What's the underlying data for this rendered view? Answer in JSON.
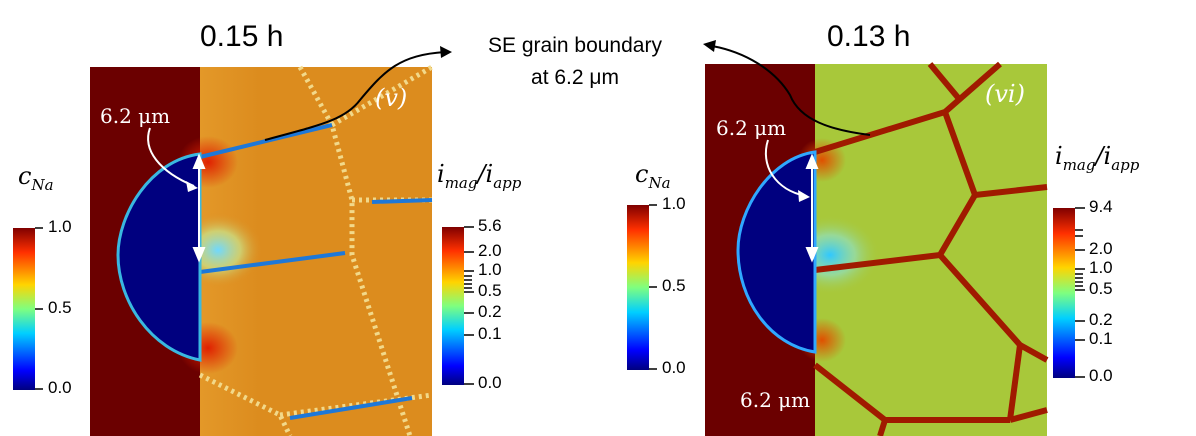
{
  "left_panel": {
    "time_label": "0.15 h",
    "panel_tag": "(v)",
    "dim_label": "6.2 μm",
    "cna_colorbar": {
      "title": "c",
      "title_sub": "Na",
      "ticks": [
        "1.0",
        "0.5",
        "0.0"
      ]
    },
    "imag_colorbar": {
      "title": "i",
      "title_sub1": "mag",
      "title_sep": "/i",
      "title_sub2": "app",
      "ticks": [
        "5.6",
        "2.0",
        "1.0",
        "0.5",
        "0.2",
        "0.1",
        "0.0"
      ]
    }
  },
  "right_panel": {
    "time_label": "0.13 h",
    "panel_tag": "(vi)",
    "dim_label_top": "6.2 μm",
    "dim_label_bottom": "6.2 μm",
    "cna_colorbar": {
      "title": "c",
      "title_sub": "Na",
      "ticks": [
        "1.0",
        "0.5",
        "0.0"
      ]
    },
    "imag_colorbar": {
      "title": "i",
      "title_sub1": "mag",
      "title_sep": "/i",
      "title_sub2": "app",
      "ticks": [
        "9.4",
        "2.0",
        "1.0",
        "0.5",
        "0.2",
        "0.1",
        "0.0"
      ]
    }
  },
  "callout": {
    "line1": "SE grain boundary",
    "line2": "at 6.2 μm"
  },
  "colors": {
    "sodium_metal": "#6b0000",
    "void": "#00007f",
    "electrolyte_left": "#dc8c1e",
    "electrolyte_right": "#a8c83a",
    "grain_boundary_right": "#a01a00"
  }
}
